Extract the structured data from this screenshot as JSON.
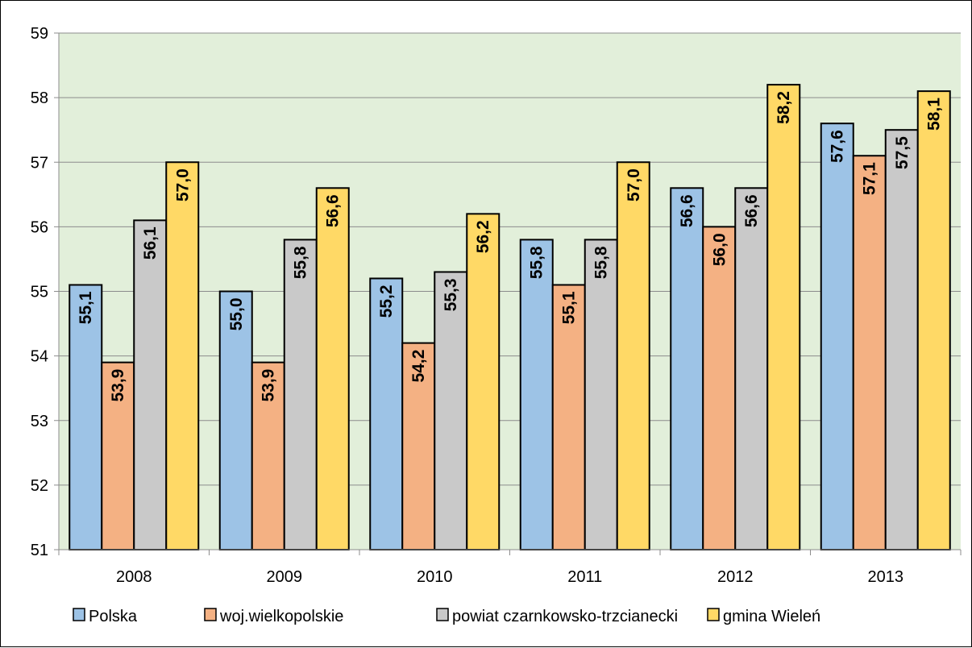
{
  "chart_data": {
    "type": "bar",
    "categories": [
      "2008",
      "2009",
      "2010",
      "2011",
      "2012",
      "2013"
    ],
    "series": [
      {
        "name": "Polska",
        "values": [
          55.1,
          55.0,
          55.2,
          55.8,
          56.6,
          57.6
        ],
        "labels": [
          "55,1",
          "55,0",
          "55,2",
          "55,8",
          "56,6",
          "57,6"
        ],
        "color": "#9DC3E6"
      },
      {
        "name": "woj.wielkopolskie",
        "values": [
          53.9,
          53.9,
          54.2,
          55.1,
          56.0,
          57.1
        ],
        "labels": [
          "53,9",
          "53,9",
          "54,2",
          "55,1",
          "56,0",
          "57,1"
        ],
        "color": "#F4B183"
      },
      {
        "name": "powiat czarnkowsko-trzcianecki",
        "values": [
          56.1,
          55.8,
          55.3,
          55.8,
          56.6,
          57.5
        ],
        "labels": [
          "56,1",
          "55,8",
          "55,3",
          "55,8",
          "56,6",
          "57,5"
        ],
        "color": "#C9C9C9"
      },
      {
        "name": "gmina Wieleń",
        "values": [
          57.0,
          56.6,
          56.2,
          57.0,
          58.2,
          58.1
        ],
        "labels": [
          "57,0",
          "56,6",
          "56,2",
          "57,0",
          "58,2",
          "58,1"
        ],
        "color": "#FFD966"
      }
    ],
    "ylim": [
      51,
      59
    ],
    "yticks": [
      "51",
      "52",
      "53",
      "54",
      "55",
      "56",
      "57",
      "58",
      "59"
    ],
    "grid": true,
    "plot_background": "#E2EFDA",
    "legend_position": "bottom",
    "title": "",
    "xlabel": "",
    "ylabel": ""
  }
}
